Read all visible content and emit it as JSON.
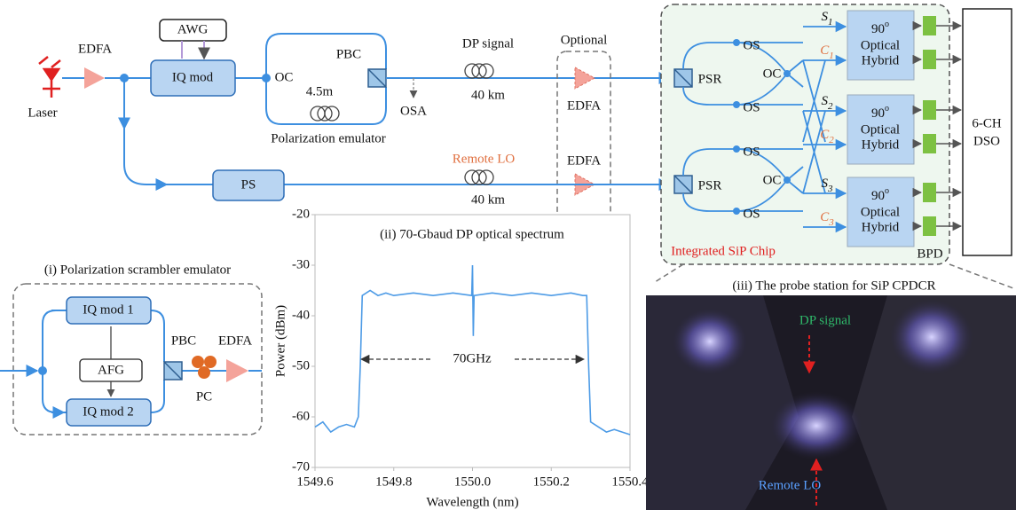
{
  "diagram": {
    "laser": "Laser",
    "edfa1": "EDFA",
    "awg": "AWG",
    "iq_mod": "IQ mod",
    "oc": "OC",
    "pbc": "PBC",
    "delay": "4.5m",
    "pol_emulator": "Polarization emulator",
    "osa": "OSA",
    "dp_signal": "DP signal",
    "dp_fiber": "40 km",
    "optional": "Optional",
    "edfa_dp": "EDFA",
    "edfa_lo": "EDFA",
    "ps": "PS",
    "remote_lo": "Remote LO",
    "lo_fiber": "40 km",
    "chip": {
      "psr": [
        "PSR",
        "PSR"
      ],
      "os": [
        "OS",
        "OS",
        "OS",
        "OS"
      ],
      "oc": [
        "OC",
        "OC"
      ],
      "outputs": [
        {
          "name": "S",
          "sub": "1"
        },
        {
          "name": "C",
          "sub": "1"
        },
        {
          "name": "S",
          "sub": "2"
        },
        {
          "name": "C",
          "sub": "2"
        },
        {
          "name": "S",
          "sub": "3"
        },
        {
          "name": "C",
          "sub": "3"
        }
      ],
      "hybrids": [
        {
          "angle": "90",
          "deg": "o",
          "line1": "Optical",
          "line2": "Hybrid"
        },
        {
          "angle": "90",
          "deg": "o",
          "line1": "Optical",
          "line2": "Hybrid"
        },
        {
          "angle": "90",
          "deg": "o",
          "line1": "Optical",
          "line2": "Hybrid"
        }
      ],
      "label": "Integrated SiP Chip",
      "bpd": "BPD"
    },
    "dso": [
      "6-CH",
      "DSO"
    ],
    "scrambler": {
      "title": "(i) Polarization scrambler emulator",
      "iq1": "IQ mod 1",
      "iq2": "IQ mod 2",
      "afg": "AFG",
      "pbc": "PBC",
      "edfa": "EDFA",
      "pc": "PC"
    },
    "photo": {
      "title": "(iii) The probe station for SiP CPDCR",
      "dp_signal": "DP signal",
      "remote_lo": "Remote LO"
    }
  },
  "chart_data": {
    "type": "line",
    "title": "(ii) 70-Gbaud DP optical spectrum",
    "x_label": "Wavelength (nm)",
    "y_label": "Power (dBm)",
    "annotation": "70GHz",
    "x": [
      1549.6,
      1549.62,
      1549.64,
      1549.66,
      1549.68,
      1549.7,
      1549.71,
      1549.715,
      1549.72,
      1549.74,
      1549.76,
      1549.78,
      1549.8,
      1549.85,
      1549.9,
      1549.95,
      1549.998,
      1550.0,
      1550.002,
      1550.004,
      1550.05,
      1550.1,
      1550.15,
      1550.2,
      1550.25,
      1550.28,
      1550.29,
      1550.295,
      1550.3,
      1550.32,
      1550.34,
      1550.36,
      1550.38,
      1550.4
    ],
    "values": [
      -62,
      -61,
      -63,
      -62,
      -61.5,
      -62,
      -60,
      -50,
      -36,
      -35,
      -36,
      -35.5,
      -36,
      -35.5,
      -36,
      -35.5,
      -36,
      -30,
      -44,
      -36,
      -35.5,
      -36,
      -35.5,
      -36,
      -35.5,
      -36,
      -36,
      -50,
      -61,
      -62,
      -63,
      -62.5,
      -63,
      -63.5
    ],
    "color": "#4d9be6",
    "xlim": [
      1549.6,
      1550.4
    ],
    "xticks": [
      1549.6,
      1549.8,
      {
        "value": 1550.0,
        "label": "1550.0"
      },
      1550.2,
      1550.4
    ],
    "ylim": [
      -70,
      -20
    ],
    "yticks": [
      -70,
      -60,
      -50,
      -40,
      -30,
      -20
    ],
    "grid": false
  }
}
